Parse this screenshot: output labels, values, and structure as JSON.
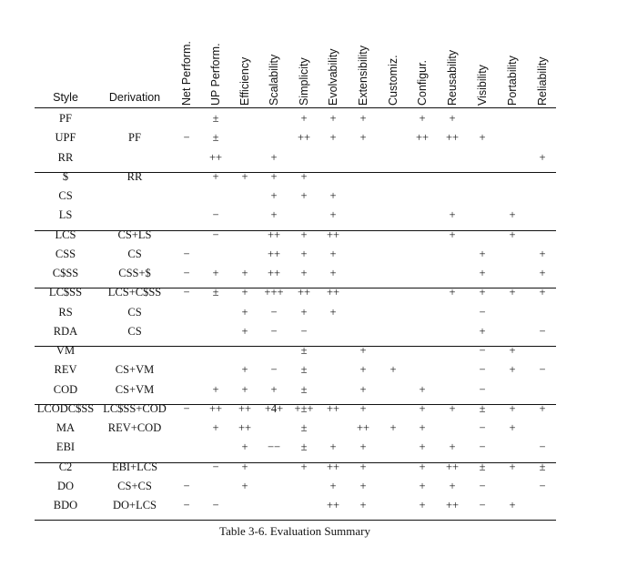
{
  "table": {
    "caption": "Table 3-6. Evaluation Summary",
    "style_header": "Style",
    "derivation_header": "Derivation",
    "property_headers": [
      "Net Perform.",
      "UP Perform.",
      "Efficiency",
      "Scalability",
      "Simplicity",
      "Evolvability",
      "Extensibility",
      "Customiz.",
      "Configur.",
      "Reusability",
      "Visibility",
      "Portability",
      "Reliability"
    ],
    "groups": [
      [
        {
          "style": "PF",
          "derivation": "",
          "values": [
            "",
            "±",
            "",
            "",
            "+",
            "+",
            "+",
            "",
            "+",
            "+",
            "",
            "",
            ""
          ]
        },
        {
          "style": "UPF",
          "derivation": "PF",
          "values": [
            "−",
            "±",
            "",
            "",
            "++",
            "+",
            "+",
            "",
            "++",
            "++",
            "+",
            "",
            ""
          ]
        },
        {
          "style": "RR",
          "derivation": "",
          "values": [
            "",
            "++",
            "",
            "+",
            "",
            "",
            "",
            "",
            "",
            "",
            "",
            "",
            "+"
          ]
        }
      ],
      [
        {
          "style": "$",
          "derivation": "RR",
          "values": [
            "",
            "+",
            "+",
            "+",
            "+",
            "",
            "",
            "",
            "",
            "",
            "",
            "",
            ""
          ]
        },
        {
          "style": "CS",
          "derivation": "",
          "values": [
            "",
            "",
            "",
            "+",
            "+",
            "+",
            "",
            "",
            "",
            "",
            "",
            "",
            ""
          ]
        },
        {
          "style": "LS",
          "derivation": "",
          "values": [
            "",
            "−",
            "",
            "+",
            "",
            "+",
            "",
            "",
            "",
            "+",
            "",
            "+",
            ""
          ]
        }
      ],
      [
        {
          "style": "LCS",
          "derivation": "CS+LS",
          "values": [
            "",
            "−",
            "",
            "++",
            "+",
            "++",
            "",
            "",
            "",
            "+",
            "",
            "+",
            ""
          ]
        },
        {
          "style": "CSS",
          "derivation": "CS",
          "values": [
            "−",
            "",
            "",
            "++",
            "+",
            "+",
            "",
            "",
            "",
            "",
            "+",
            "",
            "+"
          ]
        },
        {
          "style": "C$SS",
          "derivation": "CSS+$",
          "values": [
            "−",
            "+",
            "+",
            "++",
            "+",
            "+",
            "",
            "",
            "",
            "",
            "+",
            "",
            "+"
          ]
        }
      ],
      [
        {
          "style": "LC$SS",
          "derivation": "LCS+C$SS",
          "values": [
            "−",
            "±",
            "+",
            "+++",
            "++",
            "++",
            "",
            "",
            "",
            "+",
            "+",
            "+",
            "+"
          ]
        },
        {
          "style": "RS",
          "derivation": "CS",
          "values": [
            "",
            "",
            "+",
            "−",
            "+",
            "+",
            "",
            "",
            "",
            "",
            "−",
            "",
            ""
          ]
        },
        {
          "style": "RDA",
          "derivation": "CS",
          "values": [
            "",
            "",
            "+",
            "−",
            "−",
            "",
            "",
            "",
            "",
            "",
            "+",
            "",
            "−"
          ]
        }
      ],
      [
        {
          "style": "VM",
          "derivation": "",
          "values": [
            "",
            "",
            "",
            "",
            "±",
            "",
            "+",
            "",
            "",
            "",
            "−",
            "+",
            ""
          ]
        },
        {
          "style": "REV",
          "derivation": "CS+VM",
          "values": [
            "",
            "",
            "+",
            "−",
            "±",
            "",
            "+",
            "+",
            "",
            "",
            "−",
            "+",
            "−"
          ]
        },
        {
          "style": "COD",
          "derivation": "CS+VM",
          "values": [
            "",
            "+",
            "+",
            "+",
            "±",
            "",
            "+",
            "",
            "+",
            "",
            "−",
            "",
            ""
          ]
        }
      ],
      [
        {
          "style": "LCODC$SS",
          "derivation": "LC$SS+COD",
          "values": [
            "−",
            "++",
            "++",
            "+4+",
            "+±+",
            "++",
            "+",
            "",
            "+",
            "+",
            "±",
            "+",
            "+"
          ]
        },
        {
          "style": "MA",
          "derivation": "REV+COD",
          "values": [
            "",
            "+",
            "++",
            "",
            "±",
            "",
            "++",
            "+",
            "+",
            "",
            "−",
            "+",
            ""
          ]
        },
        {
          "style": "EBI",
          "derivation": "",
          "values": [
            "",
            "",
            "+",
            "−−",
            "±",
            "+",
            "+",
            "",
            "+",
            "+",
            "−",
            "",
            "−"
          ]
        }
      ],
      [
        {
          "style": "C2",
          "derivation": "EBI+LCS",
          "values": [
            "",
            "−",
            "+",
            "",
            "+",
            "++",
            "+",
            "",
            "+",
            "++",
            "±",
            "+",
            "±"
          ]
        },
        {
          "style": "DO",
          "derivation": "CS+CS",
          "values": [
            "−",
            "",
            "+",
            "",
            "",
            "+",
            "+",
            "",
            "+",
            "+",
            "−",
            "",
            "−"
          ]
        },
        {
          "style": "BDO",
          "derivation": "DO+LCS",
          "values": [
            "−",
            "−",
            "",
            "",
            "",
            "++",
            "+",
            "",
            "+",
            "++",
            "−",
            "+",
            ""
          ]
        }
      ]
    ]
  }
}
